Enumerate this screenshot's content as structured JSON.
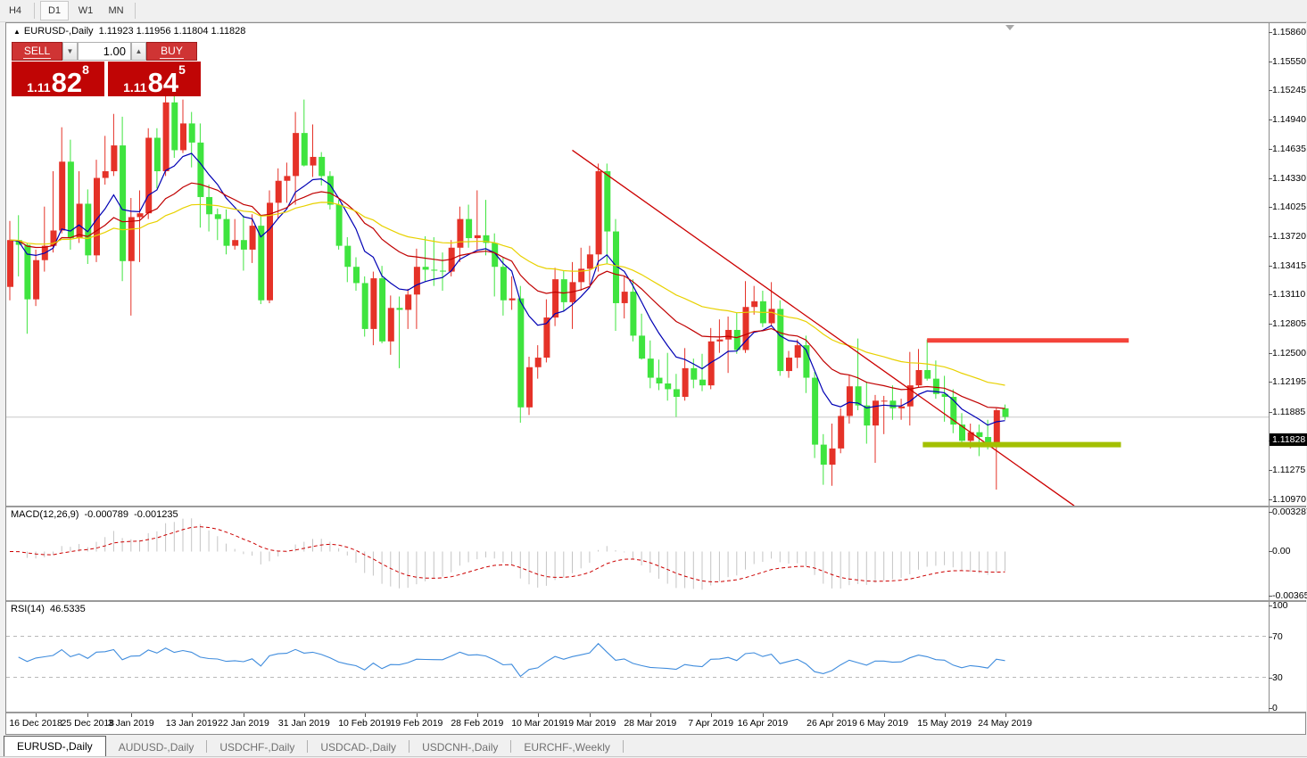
{
  "toolbar": {
    "timeframes": [
      {
        "label": "H4",
        "active": false
      },
      {
        "label": "D1",
        "active": true
      },
      {
        "label": "W1",
        "active": false
      },
      {
        "label": "MN",
        "active": false
      }
    ]
  },
  "chart": {
    "title": {
      "marker": "▲",
      "name": "EURUSD-,Daily",
      "open": "1.11923",
      "high": "1.11956",
      "low": "1.11804",
      "close": "1.11828"
    },
    "trade_panel": {
      "sell_label": "SELL",
      "buy_label": "BUY",
      "volume": "1.00",
      "spinner_down": "▼",
      "spinner_up": "▲",
      "sell_price": {
        "prefix": "1.11",
        "big": "82",
        "sup": "8"
      },
      "buy_price": {
        "prefix": "1.11",
        "big": "84",
        "sup": "5"
      }
    },
    "price_axis": {
      "labels": [
        "1.15860",
        "1.15550",
        "1.15245",
        "1.14940",
        "1.14635",
        "1.14330",
        "1.14025",
        "1.13720",
        "1.13415",
        "1.13110",
        "1.12805",
        "1.12500",
        "1.12195",
        "1.11885",
        "1.11580",
        "1.11275",
        "1.10970"
      ],
      "current": "1.11828",
      "current_price": 1.11828
    },
    "date_axis": [
      {
        "text": "16 Dec 2018",
        "index": 3
      },
      {
        "text": "25 Dec 2018",
        "index": 9
      },
      {
        "text": "3 Jan 2019",
        "index": 14
      },
      {
        "text": "13 Jan 2019",
        "index": 21
      },
      {
        "text": "22 Jan 2019",
        "index": 27
      },
      {
        "text": "31 Jan 2019",
        "index": 34
      },
      {
        "text": "10 Feb 2019",
        "index": 41
      },
      {
        "text": "19 Feb 2019",
        "index": 47
      },
      {
        "text": "28 Feb 2019",
        "index": 54
      },
      {
        "text": "10 Mar 2019",
        "index": 61
      },
      {
        "text": "19 Mar 2019",
        "index": 67
      },
      {
        "text": "28 Mar 2019",
        "index": 74
      },
      {
        "text": "7 Apr 2019",
        "index": 81
      },
      {
        "text": "16 Apr 2019",
        "index": 87
      },
      {
        "text": "26 Apr 2019",
        "index": 95
      },
      {
        "text": "6 May 2019",
        "index": 101
      },
      {
        "text": "15 May 2019",
        "index": 108
      },
      {
        "text": "24 May 2019",
        "index": 115
      }
    ],
    "overlays": {
      "trendline": {
        "from_index": 65,
        "from_price": 1.1462,
        "to_index": 123,
        "to_price": 1.109
      },
      "resistance_line": {
        "price": 1.1263,
        "from_index": 106,
        "to_index": 129.3,
        "thickness": 5
      },
      "support_line": {
        "price": 1.1154,
        "from_index": 105.5,
        "to_index": 128.4,
        "thickness": 6
      }
    },
    "moving_averages": [
      {
        "name": "fast-ma",
        "period": 8
      },
      {
        "name": "medium-ma",
        "period": 20
      },
      {
        "name": "slow-ma",
        "period": 40
      }
    ]
  },
  "macd": {
    "label": "MACD(12,26,9)",
    "value_main": "-0.000789",
    "value_signal": "-0.001235",
    "axis": [
      "0.003287",
      "0.00",
      "-0.003659"
    ],
    "axis_values": [
      0.003287,
      0,
      -0.003659
    ],
    "fast": 12,
    "slow": 26,
    "signal": 9
  },
  "rsi": {
    "label": "RSI(14)",
    "value": "46.5335",
    "period": 14,
    "axis": [
      "100",
      "70",
      "30",
      "0"
    ],
    "axis_values": [
      100,
      70,
      30,
      0
    ],
    "levels": [
      70,
      30
    ]
  },
  "tabs": [
    {
      "label": "EURUSD-,Daily",
      "active": true
    },
    {
      "label": "AUDUSD-,Daily",
      "active": false
    },
    {
      "label": "USDCHF-,Daily",
      "active": false
    },
    {
      "label": "USDCAD-,Daily",
      "active": false
    },
    {
      "label": "USDCNH-,Daily",
      "active": false
    },
    {
      "label": "EURCHF-,Weekly",
      "active": false
    }
  ],
  "colors": {
    "bull_candle": "#e53228",
    "bear_candle": "#3fe43f",
    "ma_fast": "#0000b4",
    "ma_medium": "#c00000",
    "ma_slow": "#e8d100",
    "trendline": "#cc0000",
    "resistance": "#f4433a",
    "support": "#a3c000",
    "bid_line": "#c8c8c8",
    "macd_bar": "#c4c4c4",
    "macd_signal": "#cc0000",
    "rsi_line": "#3f8cdd",
    "level_dashed": "#b8b8b8",
    "trade_red": "#c00505"
  },
  "chart_data": {
    "type": "candlestick",
    "symbol": "EURUSD-",
    "timeframe": "Daily",
    "note": "bullish candles are red, bearish candles are lime in this template; values approximate the rendered chart",
    "price_range": [
      1.1092,
      1.1593
    ],
    "candles": [
      [
        "2018-12-12",
        1.1319,
        1.1388,
        1.1305,
        1.1368
      ],
      [
        "2018-12-13",
        1.1368,
        1.1394,
        1.133,
        1.1363
      ],
      [
        "2018-12-14",
        1.1363,
        1.1365,
        1.127,
        1.1306
      ],
      [
        "2018-12-17",
        1.1306,
        1.1358,
        1.1299,
        1.1347
      ],
      [
        "2018-12-18",
        1.1347,
        1.1403,
        1.1335,
        1.1362
      ],
      [
        "2018-12-19",
        1.1362,
        1.144,
        1.1355,
        1.1378
      ],
      [
        "2018-12-20",
        1.1378,
        1.1486,
        1.1375,
        1.145
      ],
      [
        "2018-12-21",
        1.145,
        1.1473,
        1.1358,
        1.137
      ],
      [
        "2018-12-24",
        1.137,
        1.144,
        1.1365,
        1.1406
      ],
      [
        "2018-12-26",
        1.1406,
        1.1421,
        1.1343,
        1.1352
      ],
      [
        "2018-12-27",
        1.1352,
        1.1452,
        1.1345,
        1.1433
      ],
      [
        "2018-12-28",
        1.1433,
        1.1477,
        1.1426,
        1.144
      ],
      [
        "2018-12-31",
        1.144,
        1.15,
        1.1435,
        1.1467
      ],
      [
        "2019-01-02",
        1.1467,
        1.1497,
        1.1325,
        1.1346
      ],
      [
        "2019-01-03",
        1.1346,
        1.1412,
        1.1289,
        1.1392
      ],
      [
        "2019-01-04",
        1.1392,
        1.142,
        1.1345,
        1.1396
      ],
      [
        "2019-01-07",
        1.1396,
        1.1485,
        1.139,
        1.1475
      ],
      [
        "2019-01-08",
        1.1475,
        1.1485,
        1.1422,
        1.144
      ],
      [
        "2019-01-09",
        1.144,
        1.152,
        1.1435,
        1.1512
      ],
      [
        "2019-01-10",
        1.1512,
        1.1522,
        1.1454,
        1.1462
      ],
      [
        "2019-01-11",
        1.1462,
        1.1515,
        1.1459,
        1.149
      ],
      [
        "2019-01-14",
        1.149,
        1.1502,
        1.1444,
        1.147
      ],
      [
        "2019-01-15",
        1.147,
        1.149,
        1.1381,
        1.1413
      ],
      [
        "2019-01-16",
        1.1413,
        1.1426,
        1.1377,
        1.1395
      ],
      [
        "2019-01-17",
        1.1395,
        1.1401,
        1.1368,
        1.139
      ],
      [
        "2019-01-18",
        1.139,
        1.14,
        1.1353,
        1.1362
      ],
      [
        "2019-01-21",
        1.1362,
        1.139,
        1.1358,
        1.1368
      ],
      [
        "2019-01-22",
        1.1368,
        1.1394,
        1.1336,
        1.1358
      ],
      [
        "2019-01-23",
        1.1358,
        1.1395,
        1.1344,
        1.1383
      ],
      [
        "2019-01-24",
        1.1383,
        1.1393,
        1.1301,
        1.1305
      ],
      [
        "2019-01-25",
        1.1305,
        1.142,
        1.1302,
        1.1407
      ],
      [
        "2019-01-28",
        1.1407,
        1.1443,
        1.139,
        1.143
      ],
      [
        "2019-01-29",
        1.143,
        1.1449,
        1.1407,
        1.1435
      ],
      [
        "2019-01-30",
        1.1435,
        1.1502,
        1.1405,
        1.148
      ],
      [
        "2019-01-31",
        1.148,
        1.1515,
        1.1445,
        1.1446
      ],
      [
        "2019-02-01",
        1.1446,
        1.1489,
        1.1434,
        1.1455
      ],
      [
        "2019-02-04",
        1.1455,
        1.146,
        1.1425,
        1.1435
      ],
      [
        "2019-02-05",
        1.1435,
        1.144,
        1.14,
        1.1405
      ],
      [
        "2019-02-06",
        1.1405,
        1.141,
        1.1358,
        1.1362
      ],
      [
        "2019-02-07",
        1.1362,
        1.1371,
        1.1324,
        1.134
      ],
      [
        "2019-02-08",
        1.134,
        1.135,
        1.1315,
        1.1323
      ],
      [
        "2019-02-11",
        1.1323,
        1.133,
        1.1267,
        1.1275
      ],
      [
        "2019-02-12",
        1.1275,
        1.1335,
        1.1258,
        1.1328
      ],
      [
        "2019-02-13",
        1.1328,
        1.1341,
        1.126,
        1.1262
      ],
      [
        "2019-02-14",
        1.1262,
        1.131,
        1.1248,
        1.1297
      ],
      [
        "2019-02-15",
        1.1297,
        1.1309,
        1.1234,
        1.1295
      ],
      [
        "2019-02-18",
        1.1295,
        1.1317,
        1.1275,
        1.1311
      ],
      [
        "2019-02-19",
        1.1311,
        1.1359,
        1.1275,
        1.134
      ],
      [
        "2019-02-20",
        1.134,
        1.1372,
        1.1324,
        1.1337
      ],
      [
        "2019-02-21",
        1.1337,
        1.1371,
        1.132,
        1.1336
      ],
      [
        "2019-02-22",
        1.1336,
        1.1355,
        1.1315,
        1.1335
      ],
      [
        "2019-02-25",
        1.1335,
        1.1368,
        1.133,
        1.136
      ],
      [
        "2019-02-26",
        1.136,
        1.1403,
        1.1345,
        1.139
      ],
      [
        "2019-02-27",
        1.139,
        1.1405,
        1.136,
        1.137
      ],
      [
        "2019-02-28",
        1.137,
        1.142,
        1.1358,
        1.1373
      ],
      [
        "2019-03-01",
        1.1373,
        1.141,
        1.1352,
        1.1365
      ],
      [
        "2019-03-04",
        1.1365,
        1.1375,
        1.1309,
        1.134
      ],
      [
        "2019-03-05",
        1.134,
        1.135,
        1.1289,
        1.1305
      ],
      [
        "2019-03-06",
        1.1305,
        1.133,
        1.1295,
        1.1307
      ],
      [
        "2019-03-07",
        1.1307,
        1.132,
        1.1177,
        1.1193
      ],
      [
        "2019-03-08",
        1.1193,
        1.1246,
        1.1185,
        1.1235
      ],
      [
        "2019-03-11",
        1.1235,
        1.1258,
        1.1223,
        1.1245
      ],
      [
        "2019-03-12",
        1.1245,
        1.1306,
        1.124,
        1.1287
      ],
      [
        "2019-03-13",
        1.1287,
        1.1339,
        1.1278,
        1.1327
      ],
      [
        "2019-03-14",
        1.1327,
        1.1336,
        1.1294,
        1.1303
      ],
      [
        "2019-03-15",
        1.1303,
        1.1345,
        1.1275,
        1.1324
      ],
      [
        "2019-03-18",
        1.1324,
        1.136,
        1.1315,
        1.1338
      ],
      [
        "2019-03-19",
        1.1338,
        1.1362,
        1.1321,
        1.1353
      ],
      [
        "2019-03-20",
        1.1353,
        1.1448,
        1.1335,
        1.144
      ],
      [
        "2019-03-21",
        1.144,
        1.1448,
        1.1343,
        1.1377
      ],
      [
        "2019-03-22",
        1.1377,
        1.139,
        1.1273,
        1.1302
      ],
      [
        "2019-03-25",
        1.1302,
        1.133,
        1.1286,
        1.1314
      ],
      [
        "2019-03-26",
        1.1314,
        1.1327,
        1.1262,
        1.1268
      ],
      [
        "2019-03-27",
        1.1268,
        1.1291,
        1.1243,
        1.1244
      ],
      [
        "2019-03-28",
        1.1244,
        1.1263,
        1.1213,
        1.1224
      ],
      [
        "2019-03-29",
        1.1224,
        1.1243,
        1.1211,
        1.1218
      ],
      [
        "2019-04-01",
        1.1218,
        1.125,
        1.12,
        1.1212
      ],
      [
        "2019-04-02",
        1.1212,
        1.1228,
        1.1183,
        1.1204
      ],
      [
        "2019-04-03",
        1.1204,
        1.1255,
        1.12,
        1.1234
      ],
      [
        "2019-04-04",
        1.1234,
        1.1244,
        1.1213,
        1.1222
      ],
      [
        "2019-04-05",
        1.1222,
        1.1249,
        1.121,
        1.1216
      ],
      [
        "2019-04-08",
        1.1216,
        1.1276,
        1.1212,
        1.1262
      ],
      [
        "2019-04-09",
        1.1262,
        1.1285,
        1.125,
        1.1264
      ],
      [
        "2019-04-10",
        1.1264,
        1.1288,
        1.1229,
        1.1274
      ],
      [
        "2019-04-11",
        1.1274,
        1.1292,
        1.1249,
        1.1253
      ],
      [
        "2019-04-12",
        1.1253,
        1.1325,
        1.125,
        1.1298
      ],
      [
        "2019-04-15",
        1.1298,
        1.132,
        1.129,
        1.1304
      ],
      [
        "2019-04-16",
        1.1304,
        1.1315,
        1.1277,
        1.1281
      ],
      [
        "2019-04-17",
        1.1281,
        1.1324,
        1.1278,
        1.1296
      ],
      [
        "2019-04-18",
        1.1296,
        1.1305,
        1.1226,
        1.1231
      ],
      [
        "2019-04-19",
        1.1231,
        1.1252,
        1.1224,
        1.1245
      ],
      [
        "2019-04-22",
        1.1245,
        1.1264,
        1.1234,
        1.1258
      ],
      [
        "2019-04-23",
        1.1258,
        1.1268,
        1.1208,
        1.1224
      ],
      [
        "2019-04-24",
        1.1224,
        1.123,
        1.114,
        1.1154
      ],
      [
        "2019-04-25",
        1.1154,
        1.1165,
        1.1112,
        1.1133
      ],
      [
        "2019-04-26",
        1.1133,
        1.1176,
        1.1111,
        1.115
      ],
      [
        "2019-04-29",
        1.115,
        1.1192,
        1.1145,
        1.1184
      ],
      [
        "2019-04-30",
        1.1184,
        1.1227,
        1.1176,
        1.1215
      ],
      [
        "2019-05-01",
        1.1215,
        1.1265,
        1.119,
        1.1195
      ],
      [
        "2019-05-02",
        1.1195,
        1.122,
        1.1155,
        1.1174
      ],
      [
        "2019-05-03",
        1.1174,
        1.1206,
        1.1135,
        1.12
      ],
      [
        "2019-05-06",
        1.12,
        1.1205,
        1.1165,
        1.12
      ],
      [
        "2019-05-07",
        1.12,
        1.1216,
        1.118,
        1.1192
      ],
      [
        "2019-05-08",
        1.1192,
        1.1202,
        1.118,
        1.1194
      ],
      [
        "2019-05-09",
        1.1194,
        1.1251,
        1.1174,
        1.1216
      ],
      [
        "2019-05-10",
        1.1216,
        1.1254,
        1.1214,
        1.1232
      ],
      [
        "2019-05-13",
        1.1232,
        1.1264,
        1.1221,
        1.1223
      ],
      [
        "2019-05-14",
        1.1223,
        1.1242,
        1.1202,
        1.1207
      ],
      [
        "2019-05-15",
        1.1207,
        1.1226,
        1.1178,
        1.1204
      ],
      [
        "2019-05-16",
        1.1204,
        1.1212,
        1.1166,
        1.1175
      ],
      [
        "2019-05-17",
        1.1175,
        1.1187,
        1.1155,
        1.1158
      ],
      [
        "2019-05-20",
        1.1158,
        1.1176,
        1.115,
        1.1167
      ],
      [
        "2019-05-21",
        1.1167,
        1.1175,
        1.1142,
        1.1162
      ],
      [
        "2019-05-22",
        1.1162,
        1.118,
        1.1149,
        1.1153
      ],
      [
        "2019-05-23",
        1.1153,
        1.1192,
        1.1107,
        1.119
      ],
      [
        "2019-05-24",
        1.1192,
        1.1196,
        1.118,
        1.1183
      ]
    ]
  }
}
